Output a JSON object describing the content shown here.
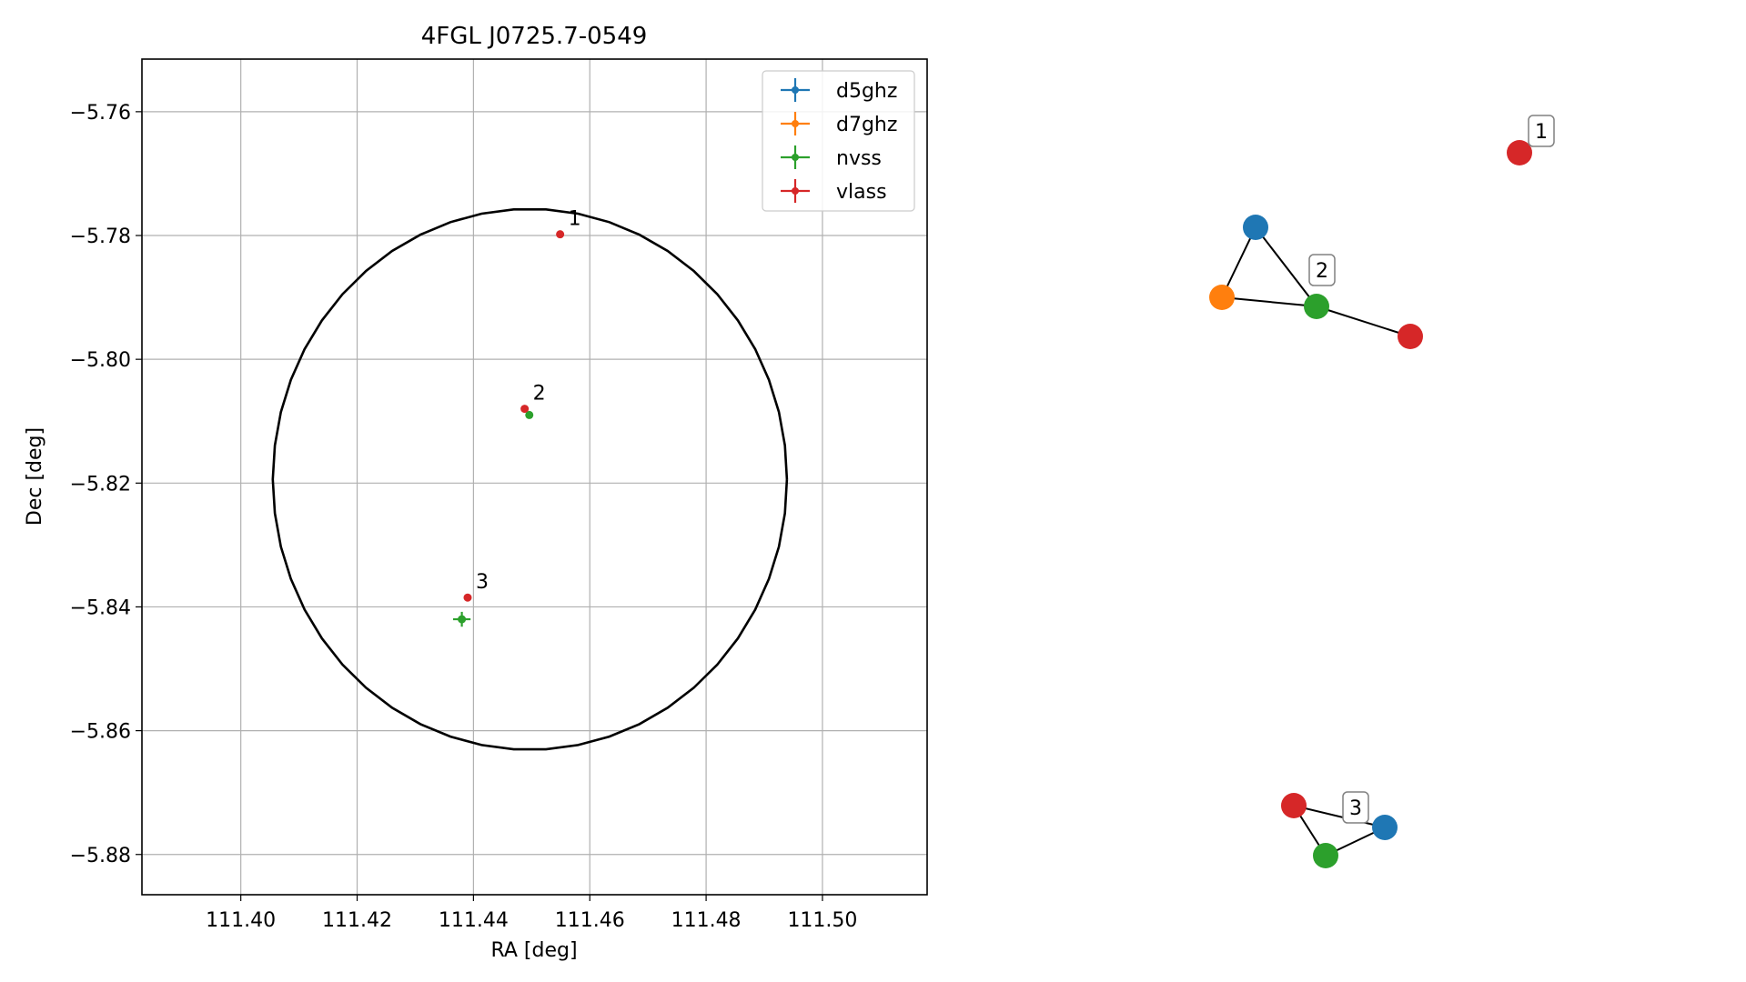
{
  "chart_data": [
    {
      "type": "scatter",
      "title": "4FGL J0725.7-0549",
      "xlabel": "RA [deg]",
      "ylabel": "Dec [deg]",
      "xlim": [
        111.383,
        111.518
      ],
      "ylim": [
        -5.8865,
        -5.7515
      ],
      "xticks": [
        111.4,
        111.42,
        111.44,
        111.46,
        111.48,
        111.5
      ],
      "xtick_labels": [
        "111.40",
        "111.42",
        "111.44",
        "111.46",
        "111.48",
        "111.50"
      ],
      "yticks": [
        -5.76,
        -5.78,
        -5.8,
        -5.82,
        -5.84,
        -5.86,
        -5.88
      ],
      "ytick_labels": [
        "−5.76",
        "−5.78",
        "−5.80",
        "−5.82",
        "−5.84",
        "−5.86",
        "−5.88"
      ],
      "grid": true,
      "legend_position": "top-right",
      "ellipse": {
        "center": [
          111.4497,
          -5.8194
        ],
        "semi_axes": [
          0.0442,
          0.0437
        ]
      },
      "series": [
        {
          "name": "d5ghz",
          "color": "#1f77b4",
          "points": []
        },
        {
          "name": "d7ghz",
          "color": "#ff7f0e",
          "points": []
        },
        {
          "name": "nvss",
          "color": "#2ca02c",
          "points": [
            {
              "x": 111.4496,
              "y": -5.809,
              "xerr": 0.0004,
              "yerr": 0.0004
            },
            {
              "x": 111.438,
              "y": -5.842,
              "xerr": 0.0015,
              "yerr": 0.0012
            }
          ]
        },
        {
          "name": "vlass",
          "color": "#d62728",
          "points": [
            {
              "x": 111.4549,
              "y": -5.7798,
              "xerr": 0.0002,
              "yerr": 0.0002
            },
            {
              "x": 111.4488,
              "y": -5.808,
              "xerr": 0.0002,
              "yerr": 0.0002
            },
            {
              "x": 111.439,
              "y": -5.8385,
              "xerr": 0.0002,
              "yerr": 0.0002
            }
          ]
        }
      ],
      "annotations": [
        {
          "text": "1",
          "x": 111.4549,
          "y": -5.7798
        },
        {
          "text": "2",
          "x": 111.4488,
          "y": -5.808
        },
        {
          "text": "3",
          "x": 111.439,
          "y": -5.8385
        }
      ]
    },
    {
      "type": "network",
      "nodes": [
        {
          "id": "a",
          "group": "vlass",
          "color": "#d62728"
        },
        {
          "id": "b",
          "group": "d5ghz",
          "color": "#1f77b4"
        },
        {
          "id": "c",
          "group": "d7ghz",
          "color": "#ff7f0e"
        },
        {
          "id": "d",
          "group": "nvss",
          "color": "#2ca02c"
        },
        {
          "id": "e",
          "group": "vlass",
          "color": "#d62728"
        },
        {
          "id": "f",
          "group": "vlass",
          "color": "#d62728"
        },
        {
          "id": "g",
          "group": "d5ghz",
          "color": "#1f77b4"
        },
        {
          "id": "h",
          "group": "nvss",
          "color": "#2ca02c"
        }
      ],
      "edges": [
        [
          "b",
          "c"
        ],
        [
          "b",
          "d"
        ],
        [
          "c",
          "d"
        ],
        [
          "d",
          "e"
        ],
        [
          "f",
          "g"
        ],
        [
          "f",
          "h"
        ],
        [
          "g",
          "h"
        ]
      ],
      "labels": [
        {
          "text": "1",
          "node": "a"
        },
        {
          "text": "2",
          "node": "d"
        },
        {
          "text": "3",
          "node": "g"
        }
      ]
    }
  ]
}
